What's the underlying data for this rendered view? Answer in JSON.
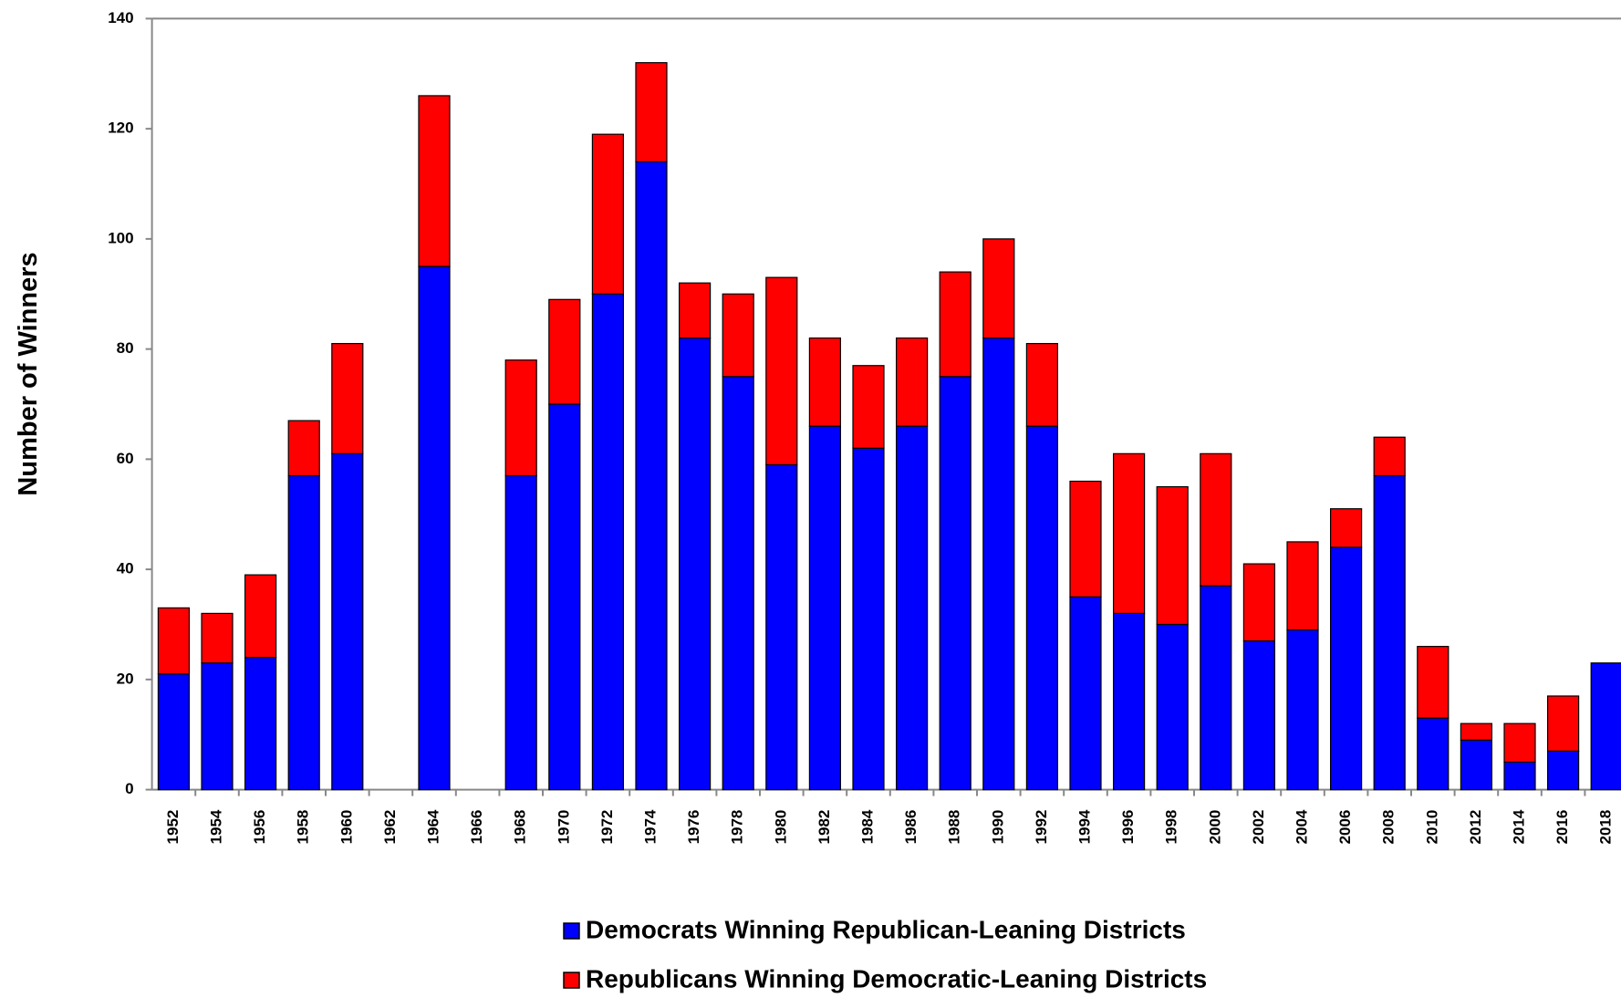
{
  "chart_data": {
    "type": "stacked_bar",
    "y_label": "Number of Winners",
    "categories": [
      "1952",
      "1954",
      "1956",
      "1958",
      "1960",
      "1962",
      "1964",
      "1966",
      "1968",
      "1970",
      "1972",
      "1974",
      "1976",
      "1978",
      "1980",
      "1982",
      "1984",
      "1986",
      "1988",
      "1990",
      "1992",
      "1994",
      "1996",
      "1998",
      "2000",
      "2002",
      "2004",
      "2006",
      "2008",
      "2010",
      "2012",
      "2014",
      "2016",
      "2018"
    ],
    "series": [
      {
        "name": "Democrats Winning Republican-Leaning Districts",
        "color": "#0000ff",
        "values": [
          21,
          23,
          24,
          57,
          61,
          0,
          95,
          0,
          57,
          70,
          90,
          114,
          82,
          75,
          59,
          66,
          62,
          66,
          75,
          82,
          66,
          35,
          32,
          30,
          37,
          27,
          29,
          44,
          57,
          13,
          9,
          5,
          7,
          23
        ]
      },
      {
        "name": "Republicans Winning Democratic-Leaning Districts",
        "color": "#ff0000",
        "values": [
          12,
          9,
          15,
          10,
          20,
          0,
          31,
          0,
          21,
          19,
          29,
          18,
          10,
          15,
          34,
          16,
          15,
          16,
          19,
          18,
          15,
          21,
          29,
          25,
          24,
          14,
          16,
          7,
          7,
          13,
          3,
          7,
          10,
          0
        ]
      }
    ],
    "ylim": [
      0,
      140
    ],
    "yticks": [
      0,
      20,
      40,
      60,
      80,
      100,
      120,
      140
    ]
  }
}
